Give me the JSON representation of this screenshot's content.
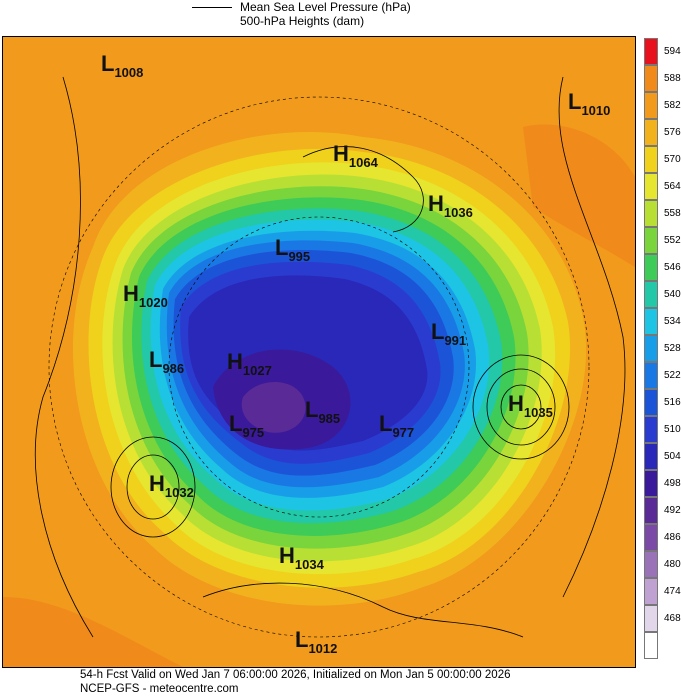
{
  "header": {
    "legend_line1": "Mean Sea Level Pressure (hPa)",
    "legend_line2": "500-hPa Heights (dam)"
  },
  "pressure_centers": [
    {
      "type": "L",
      "value": "1008"
    },
    {
      "type": "L",
      "value": "1010"
    },
    {
      "type": "H",
      "value": "1064"
    },
    {
      "type": "H",
      "value": "1036"
    },
    {
      "type": "L",
      "value": "995"
    },
    {
      "type": "H",
      "value": "1020"
    },
    {
      "type": "L",
      "value": "991"
    },
    {
      "type": "L",
      "value": "986"
    },
    {
      "type": "H",
      "value": "1027"
    },
    {
      "type": "H",
      "value": "1035"
    },
    {
      "type": "L",
      "value": "977"
    },
    {
      "type": "L",
      "value": "975"
    },
    {
      "type": "L",
      "value": "985"
    },
    {
      "type": "H",
      "value": "1032"
    },
    {
      "type": "H",
      "value": "1034"
    },
    {
      "type": "L",
      "value": "1012"
    }
  ],
  "colorbar": {
    "levels": [
      {
        "label": "594",
        "color": "#e8121e"
      },
      {
        "label": "588",
        "color": "#f08a1a"
      },
      {
        "label": "582",
        "color": "#f19a1c"
      },
      {
        "label": "576",
        "color": "#f2b21e"
      },
      {
        "label": "570",
        "color": "#f0d21c"
      },
      {
        "label": "564",
        "color": "#e6e630"
      },
      {
        "label": "558",
        "color": "#b8e034"
      },
      {
        "label": "552",
        "color": "#7ad43c"
      },
      {
        "label": "546",
        "color": "#3ecb58"
      },
      {
        "label": "540",
        "color": "#22c8a8"
      },
      {
        "label": "534",
        "color": "#1ec4e4"
      },
      {
        "label": "528",
        "color": "#189ee8"
      },
      {
        "label": "522",
        "color": "#1a78e4"
      },
      {
        "label": "516",
        "color": "#1c54d8"
      },
      {
        "label": "510",
        "color": "#2a3cd0"
      },
      {
        "label": "504",
        "color": "#2a28b8"
      },
      {
        "label": "498",
        "color": "#3a1a9a"
      },
      {
        "label": "492",
        "color": "#5a2a96"
      },
      {
        "label": "486",
        "color": "#7a4aa6"
      },
      {
        "label": "480",
        "color": "#9a72b8"
      },
      {
        "label": "474",
        "color": "#bfa2d2"
      },
      {
        "label": "468",
        "color": "#e2d6ea"
      },
      {
        "label": "",
        "color": "#ffffff"
      }
    ]
  },
  "footer": {
    "line1": "54-h Fcst Valid on Wed Jan  7 06:00:00 2026, Initialized on Mon Jan  5 00:00:00 2026",
    "line2": "NCEP-GFS - meteocentre.com"
  }
}
